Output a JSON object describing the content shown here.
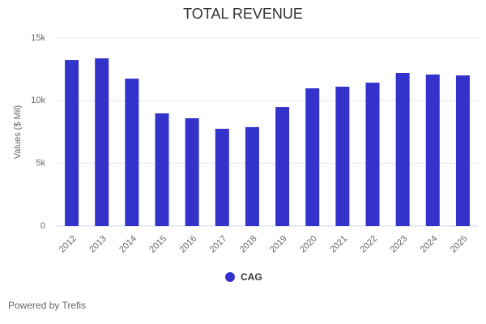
{
  "chart_data": {
    "type": "bar",
    "title": "TOTAL REVENUE",
    "y_label": "Values ($ Mil)",
    "categories": [
      "2012",
      "2013",
      "2014",
      "2015",
      "2016",
      "2017",
      "2018",
      "2019",
      "2020",
      "2021",
      "2022",
      "2023",
      "2024",
      "2025"
    ],
    "series": [
      {
        "name": "CAG",
        "color": "#3333cc",
        "values": [
          13250,
          13380,
          11760,
          8990,
          8600,
          7760,
          7890,
          9500,
          10990,
          11120,
          11440,
          12220,
          12090,
          12020
        ]
      }
    ],
    "ylim": [
      0,
      15000
    ],
    "yticks": [
      0,
      {
        "value": 5000,
        "label": "5k"
      },
      {
        "value": 10000,
        "label": "10k"
      },
      {
        "value": 15000,
        "label": "15k"
      }
    ],
    "grid": true,
    "footer": "Powered by Trefis"
  }
}
